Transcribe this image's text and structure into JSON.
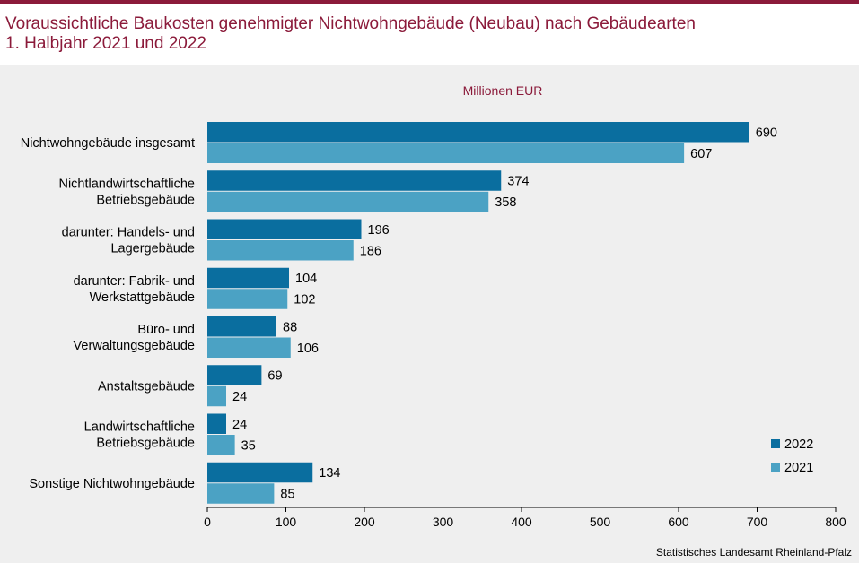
{
  "header": {
    "title_line1": "Voraussichtliche Baukosten genehmigter Nichtwohngebäude (Neubau) nach Gebäudearten",
    "title_line2": "1. Halbjahr 2021 und 2022"
  },
  "footer": {
    "source": "Statistisches Landesamt Rheinland-Pfalz"
  },
  "colors": {
    "accent": "#8b1a3a",
    "series_2022": "#0a6e9f",
    "series_2021": "#4ba2c4"
  },
  "chart_data": {
    "type": "bar",
    "orientation": "horizontal",
    "unit_label": "Millionen EUR",
    "categories": [
      [
        "Nichtwohngebäude insgesamt"
      ],
      [
        "Nichtlandwirtschaftliche",
        "Betriebsgebäude"
      ],
      [
        "darunter: Handels- und",
        "Lagergebäude"
      ],
      [
        "darunter: Fabrik- und",
        "Werkstattgebäude"
      ],
      [
        "Büro- und",
        "Verwaltungsgebäude"
      ],
      [
        "Anstaltsgebäude"
      ],
      [
        "Landwirtschaftliche",
        "Betriebsgebäude"
      ],
      [
        "Sonstige Nichtwohngebäude"
      ]
    ],
    "series": [
      {
        "name": "2022",
        "values": [
          690,
          374,
          196,
          104,
          88,
          69,
          24,
          134
        ]
      },
      {
        "name": "2021",
        "values": [
          607,
          358,
          186,
          102,
          106,
          24,
          35,
          85
        ]
      }
    ],
    "xlim": [
      0,
      800
    ],
    "xticks": [
      "0",
      "100",
      "200",
      "300",
      "400",
      "500",
      "600",
      "700",
      "800"
    ],
    "legend": [
      "2022",
      "2021"
    ],
    "legend_position": "bottom-right"
  }
}
